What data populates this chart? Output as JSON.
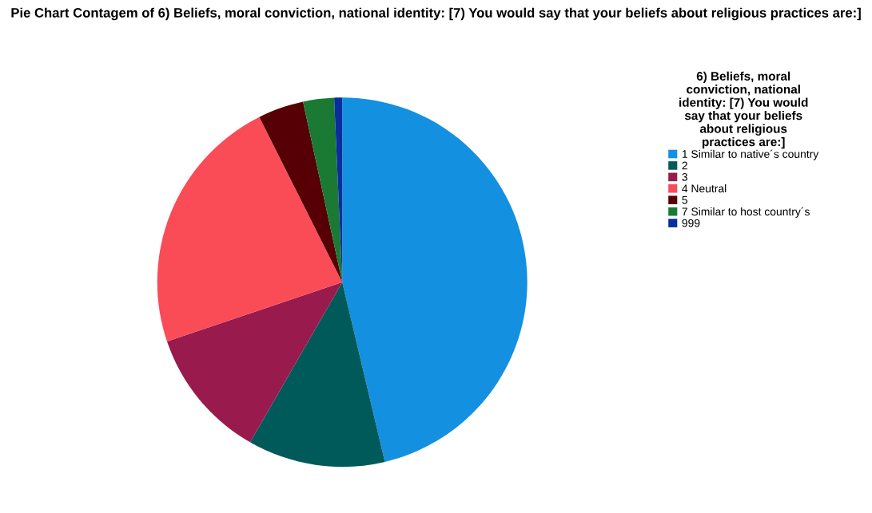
{
  "chart_data": {
    "type": "pie",
    "title": "Pie Chart Contagem of 6) Beliefs, moral conviction, national identity: [7) You would say that your beliefs about religious practices are:]",
    "legend_title": "6) Beliefs, moral\nconviction, national\nidentity: [7) You would\nsay that your beliefs\nabout religious\npractices are:]",
    "categories": [
      "1 Similar to native´s country",
      "2",
      "3",
      "4 Neutral",
      "5",
      "7 Similar to host country´s",
      "999"
    ],
    "values": [
      46.3,
      12,
      11.5,
      22.8,
      4,
      2.7,
      0.7
    ],
    "colors": [
      "#1490e0",
      "#005a5a",
      "#991a4d",
      "#f94c56",
      "#560006",
      "#1a7a34",
      "#0a2d9e"
    ],
    "legend": "right"
  }
}
